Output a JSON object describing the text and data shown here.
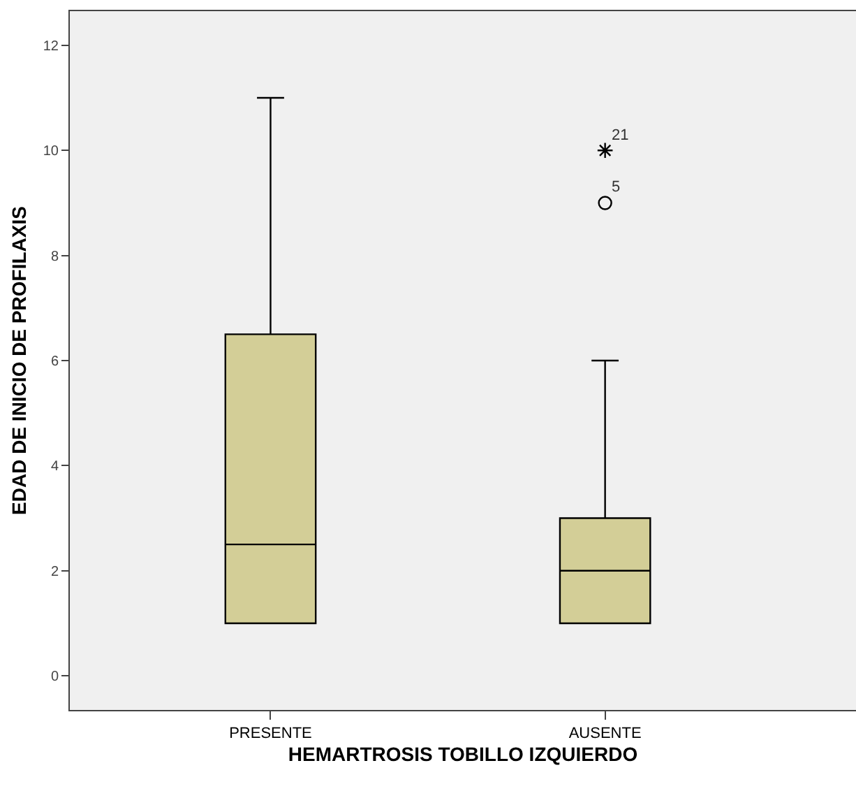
{
  "chart_data": {
    "type": "box",
    "xlabel": "HEMARTROSIS TOBILLO IZQUIERDO",
    "ylabel": "EDAD DE INICIO DE PROFILAXIS",
    "categories": [
      "PRESENTE",
      "AUSENTE"
    ],
    "boxes": [
      {
        "low": 1,
        "q1": 1,
        "median": 2.5,
        "q3": 6.5,
        "high": 11
      },
      {
        "low": 1,
        "q1": 1,
        "median": 2,
        "q3": 3,
        "high": 6,
        "outliers": [
          9,
          10
        ]
      }
    ],
    "color": "#d3ce97",
    "ylim": [
      -0.65,
      12.65
    ],
    "yticks": [
      0,
      2,
      4,
      6,
      8,
      10,
      12
    ],
    "annotations": [
      "5",
      "21"
    ]
  }
}
